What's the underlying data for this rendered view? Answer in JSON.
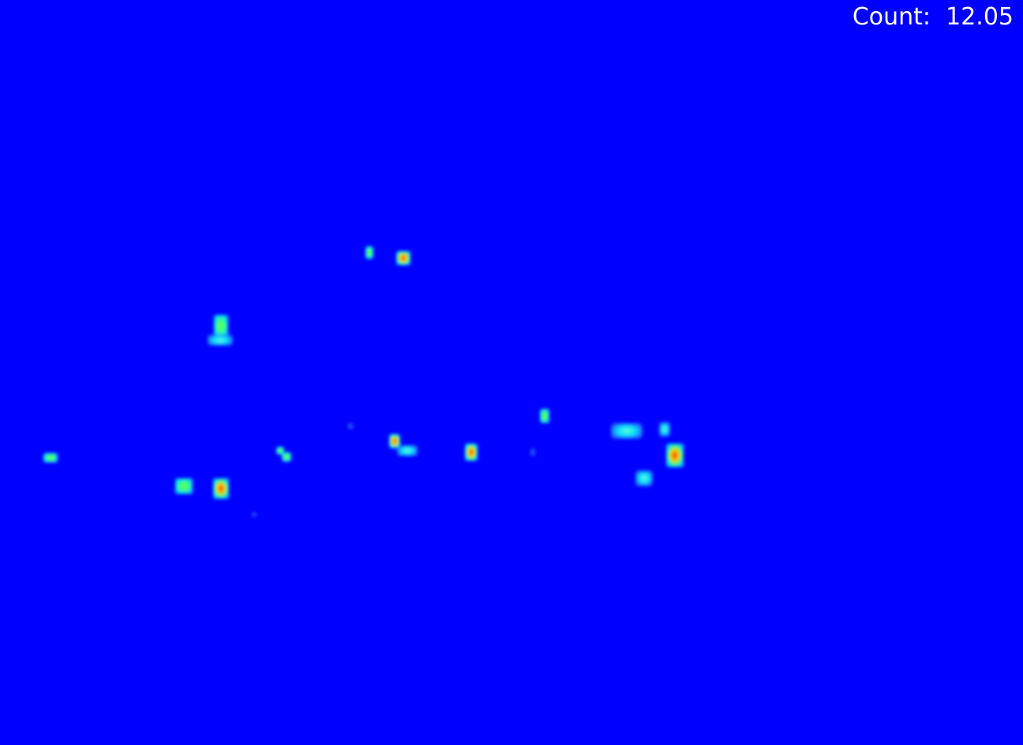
{
  "overlay": {
    "count_text": "Count:  12.05"
  },
  "colors": {
    "background": "#0000ff",
    "low": "#00e5ff",
    "mid": "#33ff66",
    "high": "#ffff00",
    "peak": "#ff2200"
  }
}
